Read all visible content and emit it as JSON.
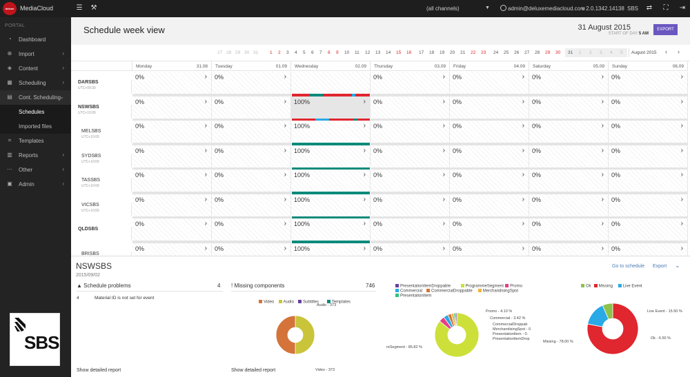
{
  "app": {
    "logo_text": "deluxe",
    "name": "MediaCloud",
    "channels_select": "(all channels)",
    "user": "admin@deluxemediacloud.com",
    "version": "v 2.0.1342.14138",
    "company": "SBS"
  },
  "sidebar": {
    "section": "PORTAL",
    "items": [
      {
        "label": "Dashboard",
        "icon": "dashboard-icon",
        "chevron": ""
      },
      {
        "label": "Import",
        "icon": "import-icon",
        "chevron": "›"
      },
      {
        "label": "Content",
        "icon": "content-icon",
        "chevron": "›"
      },
      {
        "label": "Scheduling",
        "icon": "calendar-icon",
        "chevron": "›"
      },
      {
        "label": "Cont. Scheduling",
        "icon": "calendar-grid-icon",
        "chevron": "⌄"
      },
      {
        "label": "Templates",
        "icon": "tag-icon",
        "chevron": ""
      },
      {
        "label": "Reports",
        "icon": "reports-icon",
        "chevron": "›"
      },
      {
        "label": "Other",
        "icon": "more-icon",
        "chevron": "›"
      },
      {
        "label": "Admin",
        "icon": "admin-icon",
        "chevron": "›"
      }
    ],
    "subitems": [
      "Schedules",
      "Imported files"
    ],
    "brand_logo": "SBS"
  },
  "header": {
    "title": "Schedule week view",
    "date": "31 August 2015",
    "start_of_day_label": "START OF DAY",
    "start_of_day_value": "5 AM",
    "export_label": "EXPORT"
  },
  "strip": {
    "days": [
      {
        "t": "27",
        "c": "grey"
      },
      {
        "t": "28",
        "c": "grey"
      },
      {
        "t": "29",
        "c": "grey"
      },
      {
        "t": "30",
        "c": "grey"
      },
      {
        "t": "31",
        "c": "grey"
      },
      {
        "t": "1",
        "c": "red"
      },
      {
        "t": "2",
        "c": "red"
      },
      {
        "t": "3",
        "c": ""
      },
      {
        "t": "4",
        "c": ""
      },
      {
        "t": "5",
        "c": ""
      },
      {
        "t": "6",
        "c": ""
      },
      {
        "t": "7",
        "c": ""
      },
      {
        "t": "8",
        "c": "red"
      },
      {
        "t": "9",
        "c": "red"
      },
      {
        "t": "10",
        "c": ""
      },
      {
        "t": "11",
        "c": ""
      },
      {
        "t": "12",
        "c": ""
      },
      {
        "t": "13",
        "c": ""
      },
      {
        "t": "14",
        "c": ""
      },
      {
        "t": "15",
        "c": "red"
      },
      {
        "t": "16",
        "c": "red"
      },
      {
        "t": "17",
        "c": ""
      },
      {
        "t": "18",
        "c": ""
      },
      {
        "t": "19",
        "c": ""
      },
      {
        "t": "20",
        "c": ""
      },
      {
        "t": "21",
        "c": ""
      },
      {
        "t": "22",
        "c": "red"
      },
      {
        "t": "23",
        "c": "red"
      },
      {
        "t": "24",
        "c": ""
      },
      {
        "t": "25",
        "c": ""
      },
      {
        "t": "26",
        "c": ""
      },
      {
        "t": "27",
        "c": ""
      },
      {
        "t": "28",
        "c": ""
      },
      {
        "t": "29",
        "c": "red"
      },
      {
        "t": "30",
        "c": "red"
      },
      {
        "t": "31",
        "c": ""
      },
      {
        "t": "1",
        "c": "grey"
      },
      {
        "t": "2",
        "c": "grey"
      },
      {
        "t": "3",
        "c": "grey"
      },
      {
        "t": "4",
        "c": "grey"
      },
      {
        "t": "5",
        "c": "grey"
      },
      {
        "t": "6",
        "c": "grey"
      }
    ],
    "month": "August 2015",
    "prev": "‹",
    "next": "›"
  },
  "week": {
    "columns": [
      {
        "day": "Monday",
        "date": "31.08"
      },
      {
        "day": "Tuesday",
        "date": "01.09"
      },
      {
        "day": "Wednesday",
        "date": "02.09"
      },
      {
        "day": "Thursday",
        "date": "03.09"
      },
      {
        "day": "Friday",
        "date": "04.09"
      },
      {
        "day": "Saturday",
        "date": "05.09"
      },
      {
        "day": "Sunday",
        "date": "06.09"
      }
    ],
    "channels": [
      {
        "name": "DARSBS",
        "utc": "UTC+09:30",
        "bold": true,
        "values": [
          "0%",
          "0%",
          "",
          "0%",
          "0%",
          "0%",
          "0%"
        ]
      },
      {
        "name": "NSWSBS",
        "utc": "UTC+10:00",
        "bold": true,
        "values": [
          "0%",
          "0%",
          "100%",
          "0%",
          "0%",
          "0%",
          "0%"
        ]
      },
      {
        "name": "MELSBS",
        "utc": "UTC+10:00",
        "bold": false,
        "values": [
          "0%",
          "0%",
          "100%",
          "0%",
          "0%",
          "0%",
          "0%"
        ]
      },
      {
        "name": "SYDSBS",
        "utc": "UTC+10:00",
        "bold": false,
        "values": [
          "0%",
          "0%",
          "100%",
          "0%",
          "0%",
          "0%",
          "0%"
        ]
      },
      {
        "name": "TASSBS",
        "utc": "UTC+10:00",
        "bold": false,
        "values": [
          "0%",
          "0%",
          "100%",
          "0%",
          "0%",
          "0%",
          "0%"
        ]
      },
      {
        "name": "VICSBS",
        "utc": "UTC+10:00",
        "bold": false,
        "values": [
          "0%",
          "0%",
          "100%",
          "0%",
          "0%",
          "0%",
          "0%"
        ]
      },
      {
        "name": "QLDSBS",
        "utc": "",
        "bold": true,
        "values": [
          "0%",
          "0%",
          "100%",
          "0%",
          "0%",
          "0%",
          "0%"
        ]
      },
      {
        "name": "BRISBS",
        "utc": "",
        "bold": false,
        "values": [
          "0%",
          "0%",
          "100%",
          "0%",
          "0%",
          "0%",
          "0%"
        ]
      }
    ],
    "arrow": "›"
  },
  "detail": {
    "channel": "NSWSBS",
    "date": "2015/09/02",
    "goto_label": "Go to schedule",
    "export_label": "Export",
    "problems_title": "Schedule problems",
    "problems_count": "4",
    "problem_rows": [
      {
        "count": "4",
        "text": "Material ID is not set for event"
      }
    ],
    "missing_title": "Missing components",
    "missing_count": "746",
    "show_report": "Show detailed report"
  },
  "colors": {
    "red": "#e0262e",
    "teal": "#0a8a7b",
    "blue": "#29a9e6",
    "accent": "#6a57c0",
    "link": "#4a7ab5",
    "lime": "#cde03a",
    "orange": "#d4743a",
    "olive": "#c9c43a",
    "purple": "#6b3fa0",
    "green": "#8cc34a",
    "pink": "#e83d84",
    "yellow": "#f2b33a",
    "mint": "#2ec27e"
  },
  "chart_data": [
    {
      "type": "pie",
      "title": "Missing components",
      "series": [
        {
          "name": "Video",
          "value": 50
        },
        {
          "name": "Audio",
          "value": 50
        },
        {
          "name": "Subtitles",
          "value": 0
        },
        {
          "name": "Templates",
          "value": 0
        }
      ],
      "legend": [
        "Video",
        "Audio",
        "Subtitles",
        "Templates"
      ],
      "labels": [
        "Audio - 373",
        "Video - 373"
      ]
    },
    {
      "type": "pie",
      "series": [
        {
          "name": "ProgrammeSegment",
          "value": 85.82
        },
        {
          "name": "Promo",
          "value": 4.1
        },
        {
          "name": "Commercial",
          "value": 3.42
        },
        {
          "name": "CommercialDroppable",
          "value": 2.5
        },
        {
          "name": "MerchandisingSpot",
          "value": 2.0
        },
        {
          "name": "PresentationItem",
          "value": 1.2
        },
        {
          "name": "PresentationItemDroppable",
          "value": 0.96
        }
      ],
      "legend": [
        "PresentationItemDroppable",
        "ProgrammeSegment",
        "Promo",
        "Commercial",
        "CommercialDroppable",
        "MerchandisingSpot",
        "PresentationItem"
      ],
      "labels": [
        "Promo - 4.10 %",
        "Commercial - 3.42 %",
        "CommercialDroppab",
        "MerchandisingSpot - 0",
        "PresentationItem - 0.",
        "PresentationItemDrop",
        "reSegment - 85.82 %"
      ]
    },
    {
      "type": "pie",
      "series": [
        {
          "name": "Missing",
          "value": 78.0
        },
        {
          "name": "Live Event",
          "value": 15.5
        },
        {
          "name": "Ok",
          "value": 6.5
        }
      ],
      "legend": [
        "Ok",
        "Missing",
        "Live Event"
      ],
      "labels": [
        "Live Event - 15.50 %",
        "Ok - 6.50 %",
        "Missing - 78.00 %"
      ]
    }
  ]
}
